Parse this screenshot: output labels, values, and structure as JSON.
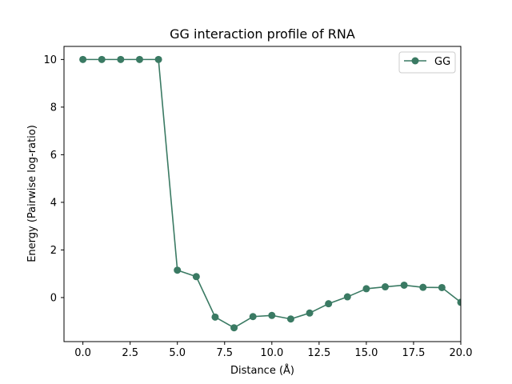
{
  "chart_data": {
    "type": "line",
    "title": "GG interaction profile of  RNA",
    "xlabel": "Distance (Å)",
    "ylabel": "Energy (Pairwise log-ratio)",
    "xlim": [
      -1.0,
      20.0
    ],
    "ylim": [
      -1.85,
      10.55
    ],
    "xticks": [
      "0.0",
      "2.5",
      "5.0",
      "7.5",
      "10.0",
      "12.5",
      "15.0",
      "17.5",
      "20.0"
    ],
    "xtick_values": [
      0,
      2.5,
      5,
      7.5,
      10,
      12.5,
      15,
      17.5,
      20
    ],
    "yticks": [
      "0",
      "2",
      "4",
      "6",
      "8",
      "10"
    ],
    "ytick_values": [
      0,
      2,
      4,
      6,
      8,
      10
    ],
    "grid": false,
    "legend": {
      "position": "top-right"
    },
    "series": [
      {
        "name": "GG",
        "color": "#3a7a63",
        "marker": "circle",
        "x": [
          0,
          1,
          2,
          3,
          4,
          5,
          6,
          7,
          8,
          9,
          10,
          11,
          12,
          13,
          14,
          15,
          16,
          17,
          18,
          19,
          20
        ],
        "y": [
          10.0,
          10.0,
          10.0,
          10.0,
          10.0,
          1.15,
          0.88,
          -0.82,
          -1.27,
          -0.8,
          -0.75,
          -0.9,
          -0.65,
          -0.26,
          0.03,
          0.37,
          0.45,
          0.52,
          0.43,
          0.42,
          -0.2
        ]
      }
    ]
  }
}
